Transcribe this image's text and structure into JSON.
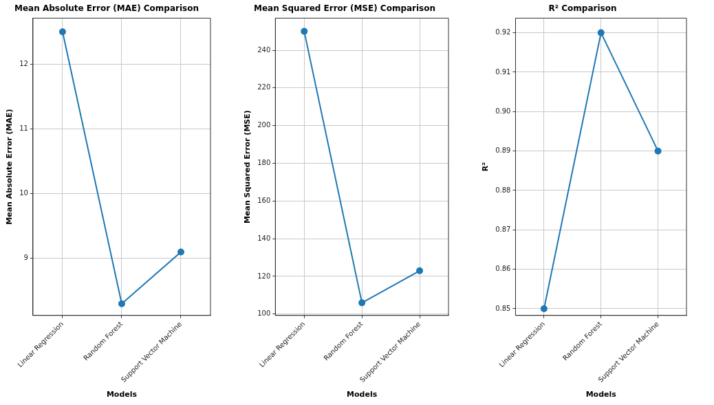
{
  "chart_data": [
    {
      "type": "line",
      "title": "Mean Absolute Error (MAE) Comparison",
      "xlabel": "Models",
      "ylabel": "Mean Absolute Error (MAE)",
      "categories": [
        "Linear Regression",
        "Random Forest",
        "Support Vector Machine"
      ],
      "series": [
        {
          "color": "#1f77b4",
          "values": [
            12.5,
            8.3,
            9.1
          ]
        }
      ],
      "ylim": [
        8.12,
        12.71
      ],
      "yticks": [
        9,
        10,
        11,
        12
      ],
      "grid": true,
      "marker": "circle",
      "line_style": "solid"
    },
    {
      "type": "line",
      "title": "Mean Squared Error (MSE) Comparison",
      "xlabel": "Models",
      "ylabel": "Mean Squared Error (MSE)",
      "categories": [
        "Linear Regression",
        "Random Forest",
        "Support Vector Machine"
      ],
      "series": [
        {
          "color": "#1f77b4",
          "values": [
            250,
            106,
            123
          ]
        }
      ],
      "ylim": [
        99.3,
        257
      ],
      "yticks": [
        100,
        120,
        140,
        160,
        180,
        200,
        220,
        240
      ],
      "grid": true,
      "marker": "circle",
      "line_style": "solid"
    },
    {
      "type": "line",
      "title": "R² Comparison",
      "xlabel": "Models",
      "ylabel": "R²",
      "categories": [
        "Linear Regression",
        "Random Forest",
        "Support Vector Machine"
      ],
      "series": [
        {
          "color": "#1f77b4",
          "values": [
            0.85,
            0.92,
            0.89
          ]
        }
      ],
      "ylim": [
        0.8483,
        0.9237
      ],
      "yticks": [
        0.85,
        0.86,
        0.87,
        0.88,
        0.89,
        {
          "value": 0.9,
          "label": "0.90"
        },
        0.91,
        0.92
      ],
      "grid": true,
      "marker": "circle",
      "line_style": "solid"
    }
  ]
}
